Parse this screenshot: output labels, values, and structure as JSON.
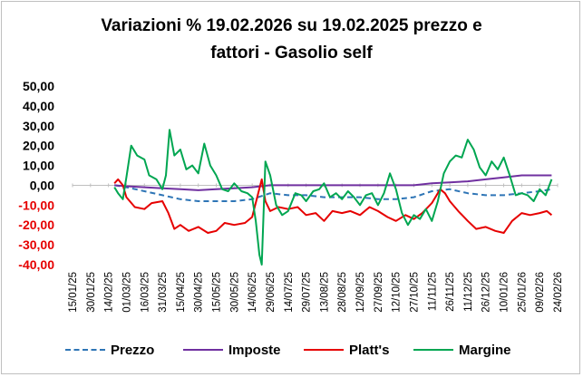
{
  "chart_data": {
    "type": "line",
    "title_line1": "Variazioni % 19.02.2026 su 19.02.2025 prezzo e",
    "title_line2": "fattori - Gasolio self",
    "ylim": [
      -40,
      50
    ],
    "y_ticks": [
      "50,00",
      "40,00",
      "30,00",
      "20,00",
      "10,00",
      "0,00",
      "-10,00",
      "-20,00",
      "-30,00",
      "-40,00"
    ],
    "x_ticks": [
      "15/01/25",
      "30/01/25",
      "14/02/25",
      "01/03/25",
      "16/03/25",
      "31/03/25",
      "15/04/25",
      "30/04/25",
      "15/05/25",
      "30/05/25",
      "14/06/25",
      "29/06/25",
      "14/07/25",
      "29/07/25",
      "13/08/25",
      "28/08/25",
      "12/09/25",
      "27/09/25",
      "12/10/25",
      "27/10/25",
      "11/11/25",
      "26/11/25",
      "11/12/25",
      "26/12/25",
      "10/01/26",
      "25/01/26",
      "09/02/26",
      "24/02/26"
    ],
    "series": [
      {
        "name": "Prezzo",
        "color": "#2e75b6",
        "dash": "6,4",
        "points": [
          [
            "19/02/25",
            0
          ],
          [
            "01/03/25",
            -1
          ],
          [
            "16/03/25",
            -3
          ],
          [
            "31/03/25",
            -5
          ],
          [
            "15/04/25",
            -7
          ],
          [
            "30/04/25",
            -8
          ],
          [
            "15/05/25",
            -8
          ],
          [
            "30/05/25",
            -8
          ],
          [
            "14/06/25",
            -7
          ],
          [
            "29/06/25",
            -4
          ],
          [
            "14/07/25",
            -5
          ],
          [
            "29/07/25",
            -5
          ],
          [
            "13/08/25",
            -6
          ],
          [
            "28/08/25",
            -6
          ],
          [
            "12/09/25",
            -6
          ],
          [
            "27/09/25",
            -7
          ],
          [
            "12/10/25",
            -7
          ],
          [
            "27/10/25",
            -6
          ],
          [
            "11/11/25",
            -3
          ],
          [
            "26/11/25",
            -2
          ],
          [
            "11/12/25",
            -4
          ],
          [
            "26/12/25",
            -5
          ],
          [
            "10/01/26",
            -5
          ],
          [
            "25/01/26",
            -4
          ],
          [
            "09/02/26",
            -3
          ],
          [
            "19/02/26",
            -2
          ]
        ]
      },
      {
        "name": "Imposte",
        "color": "#7030a0",
        "dash": "",
        "points": [
          [
            "19/02/25",
            0
          ],
          [
            "01/03/25",
            -0.5
          ],
          [
            "16/03/25",
            -1
          ],
          [
            "31/03/25",
            -1.5
          ],
          [
            "15/04/25",
            -2
          ],
          [
            "30/04/25",
            -2.5
          ],
          [
            "15/05/25",
            -2
          ],
          [
            "30/05/25",
            -1.5
          ],
          [
            "14/06/25",
            -1
          ],
          [
            "29/06/25",
            0
          ],
          [
            "14/07/25",
            0
          ],
          [
            "29/07/25",
            0
          ],
          [
            "13/08/25",
            0
          ],
          [
            "28/08/25",
            0
          ],
          [
            "12/09/25",
            0
          ],
          [
            "27/09/25",
            0
          ],
          [
            "12/10/25",
            0
          ],
          [
            "27/10/25",
            0
          ],
          [
            "11/11/25",
            1
          ],
          [
            "26/11/25",
            1.5
          ],
          [
            "11/12/25",
            2
          ],
          [
            "26/12/25",
            3
          ],
          [
            "10/01/26",
            4
          ],
          [
            "25/01/26",
            5
          ],
          [
            "09/02/26",
            5
          ],
          [
            "19/02/26",
            5
          ]
        ]
      },
      {
        "name": "Platt's",
        "color": "#e60000",
        "dash": "",
        "points": [
          [
            "19/02/25",
            1
          ],
          [
            "22/02/25",
            3
          ],
          [
            "26/02/25",
            0
          ],
          [
            "01/03/25",
            -6
          ],
          [
            "08/03/25",
            -11
          ],
          [
            "16/03/25",
            -12
          ],
          [
            "22/03/25",
            -9
          ],
          [
            "31/03/25",
            -8
          ],
          [
            "05/04/25",
            -14
          ],
          [
            "10/04/25",
            -22
          ],
          [
            "15/04/25",
            -20
          ],
          [
            "22/04/25",
            -23
          ],
          [
            "30/04/25",
            -21
          ],
          [
            "08/05/25",
            -24
          ],
          [
            "15/05/25",
            -23
          ],
          [
            "22/05/25",
            -19
          ],
          [
            "30/05/25",
            -20
          ],
          [
            "08/06/25",
            -19
          ],
          [
            "14/06/25",
            -16
          ],
          [
            "19/06/25",
            -4
          ],
          [
            "22/06/25",
            3
          ],
          [
            "25/06/25",
            -8
          ],
          [
            "29/06/25",
            -13
          ],
          [
            "06/07/25",
            -11
          ],
          [
            "14/07/25",
            -12
          ],
          [
            "22/07/25",
            -11
          ],
          [
            "29/07/25",
            -15
          ],
          [
            "06/08/25",
            -14
          ],
          [
            "13/08/25",
            -18
          ],
          [
            "20/08/25",
            -13
          ],
          [
            "28/08/25",
            -14
          ],
          [
            "04/09/25",
            -13
          ],
          [
            "12/09/25",
            -15
          ],
          [
            "20/09/25",
            -11
          ],
          [
            "27/09/25",
            -13
          ],
          [
            "05/10/25",
            -16
          ],
          [
            "12/10/25",
            -18
          ],
          [
            "20/10/25",
            -15
          ],
          [
            "27/10/25",
            -17
          ],
          [
            "03/11/25",
            -14
          ],
          [
            "11/11/25",
            -9
          ],
          [
            "18/11/25",
            -2
          ],
          [
            "22/11/25",
            -4
          ],
          [
            "26/11/25",
            -8
          ],
          [
            "03/12/25",
            -13
          ],
          [
            "11/12/25",
            -18
          ],
          [
            "18/12/25",
            -22
          ],
          [
            "26/12/25",
            -21
          ],
          [
            "03/01/26",
            -23
          ],
          [
            "10/01/26",
            -24
          ],
          [
            "17/01/26",
            -18
          ],
          [
            "25/01/26",
            -14
          ],
          [
            "01/02/26",
            -15
          ],
          [
            "09/02/26",
            -14
          ],
          [
            "15/02/26",
            -13
          ],
          [
            "19/02/26",
            -15
          ]
        ]
      },
      {
        "name": "Margine",
        "color": "#00a651",
        "dash": "",
        "points": [
          [
            "19/02/25",
            -1
          ],
          [
            "22/02/25",
            -4
          ],
          [
            "26/02/25",
            -7
          ],
          [
            "01/03/25",
            4
          ],
          [
            "05/03/25",
            20
          ],
          [
            "10/03/25",
            15
          ],
          [
            "16/03/25",
            13
          ],
          [
            "20/03/25",
            5
          ],
          [
            "26/03/25",
            3
          ],
          [
            "31/03/25",
            -2
          ],
          [
            "03/04/25",
            5
          ],
          [
            "06/04/25",
            28
          ],
          [
            "10/04/25",
            15
          ],
          [
            "15/04/25",
            18
          ],
          [
            "20/04/25",
            8
          ],
          [
            "25/04/25",
            10
          ],
          [
            "30/04/25",
            6
          ],
          [
            "05/05/25",
            21
          ],
          [
            "10/05/25",
            10
          ],
          [
            "15/05/25",
            5
          ],
          [
            "20/05/25",
            -2
          ],
          [
            "25/05/25",
            -3
          ],
          [
            "30/05/25",
            1
          ],
          [
            "05/06/25",
            -3
          ],
          [
            "10/06/25",
            -4
          ],
          [
            "14/06/25",
            -6
          ],
          [
            "17/06/25",
            -18
          ],
          [
            "20/06/25",
            -35
          ],
          [
            "22/06/25",
            -40
          ],
          [
            "25/06/25",
            12
          ],
          [
            "29/06/25",
            5
          ],
          [
            "04/07/25",
            -10
          ],
          [
            "09/07/25",
            -15
          ],
          [
            "14/07/25",
            -13
          ],
          [
            "20/07/25",
            -4
          ],
          [
            "25/07/25",
            -5
          ],
          [
            "29/07/25",
            -8
          ],
          [
            "04/08/25",
            -3
          ],
          [
            "09/08/25",
            -2
          ],
          [
            "13/08/25",
            1
          ],
          [
            "18/08/25",
            -6
          ],
          [
            "23/08/25",
            -4
          ],
          [
            "28/08/25",
            -7
          ],
          [
            "02/09/25",
            -3
          ],
          [
            "07/09/25",
            -6
          ],
          [
            "12/09/25",
            -10
          ],
          [
            "17/09/25",
            -5
          ],
          [
            "22/09/25",
            -4
          ],
          [
            "27/09/25",
            -10
          ],
          [
            "02/10/25",
            -4
          ],
          [
            "07/10/25",
            6
          ],
          [
            "12/10/25",
            -2
          ],
          [
            "17/10/25",
            -14
          ],
          [
            "22/10/25",
            -20
          ],
          [
            "27/10/25",
            -15
          ],
          [
            "01/11/25",
            -17
          ],
          [
            "06/11/25",
            -12
          ],
          [
            "11/11/25",
            -18
          ],
          [
            "16/11/25",
            -8
          ],
          [
            "21/11/25",
            6
          ],
          [
            "26/11/25",
            12
          ],
          [
            "01/12/25",
            15
          ],
          [
            "06/12/25",
            14
          ],
          [
            "11/12/25",
            23
          ],
          [
            "16/12/25",
            18
          ],
          [
            "21/12/25",
            9
          ],
          [
            "26/12/25",
            5
          ],
          [
            "31/12/25",
            12
          ],
          [
            "05/01/26",
            8
          ],
          [
            "10/01/26",
            14
          ],
          [
            "15/01/26",
            5
          ],
          [
            "20/01/26",
            -5
          ],
          [
            "25/01/26",
            -4
          ],
          [
            "30/01/26",
            -5
          ],
          [
            "04/02/26",
            -8
          ],
          [
            "09/02/26",
            -2
          ],
          [
            "14/02/26",
            -5
          ],
          [
            "19/02/26",
            3
          ]
        ]
      }
    ]
  }
}
